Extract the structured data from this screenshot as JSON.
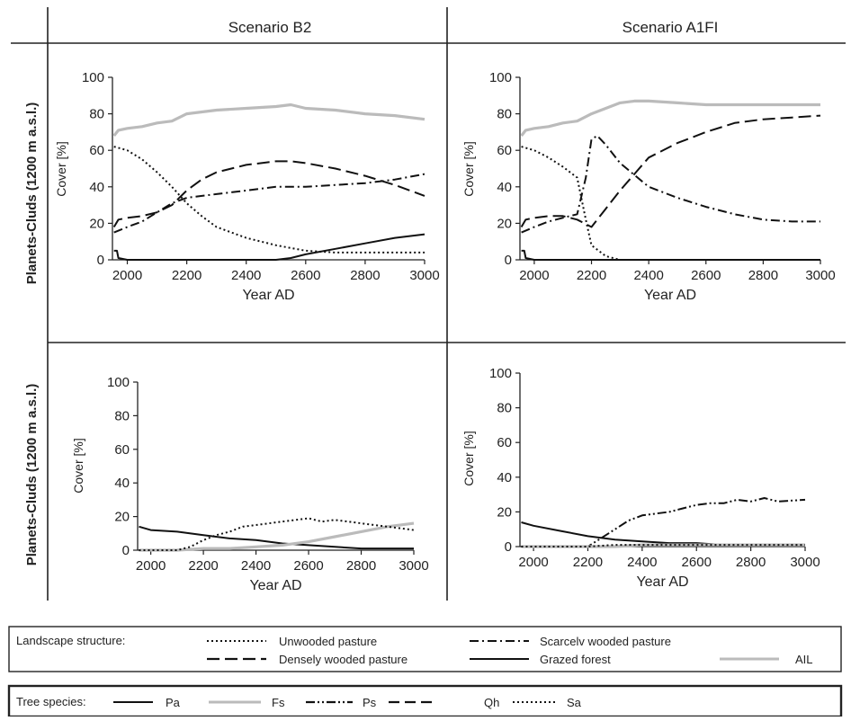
{
  "header": {
    "col_left": "Scenario B2",
    "col_right": "Scenario A1FI"
  },
  "rows": [
    {
      "label": "Planets-Cluds (1200 m a.s.l.)"
    },
    {
      "label": "Planets-Cluds (1200 m a.s.l.)"
    }
  ],
  "colors": {
    "black": "#111111",
    "grey": "#bbbbbb",
    "frame": "#222222"
  },
  "legends": {
    "landscape": {
      "title": "Landscape structure:",
      "items": [
        {
          "label": "Unwooded pasture",
          "style": "dotted",
          "color": "#111111"
        },
        {
          "label": "Scarcelv wooded pasture",
          "style": "dash-dot",
          "color": "#111111"
        },
        {
          "label": "Densely wooded pasture",
          "style": "long-dash",
          "color": "#111111"
        },
        {
          "label": "Grazed forest",
          "style": "solid",
          "color": "#111111"
        },
        {
          "label": "AIL",
          "style": "solid",
          "color": "#bbbbbb"
        }
      ]
    },
    "species": {
      "title": "Tree species:",
      "items": [
        {
          "label": "Pa",
          "style": "solid",
          "color": "#111111"
        },
        {
          "label": "Fs",
          "style": "solid",
          "color": "#bbbbbb"
        },
        {
          "label": "Ps",
          "style": "dash-dot-dot",
          "color": "#111111"
        },
        {
          "label": "Qh",
          "style": "long-dash",
          "color": "#111111"
        },
        {
          "label": "Sa",
          "style": "dotted",
          "color": "#111111"
        }
      ]
    }
  },
  "chart_data": [
    {
      "type": "line",
      "panel": "top-left",
      "xlabel": "Year AD",
      "ylabel": "Cover [%]",
      "xlim": [
        1950,
        3000
      ],
      "ylim": [
        0,
        100
      ],
      "xticks": [
        2000,
        2200,
        2400,
        2600,
        2800,
        3000
      ],
      "yticks": [
        0,
        20,
        40,
        60,
        80,
        100
      ],
      "series": [
        {
          "legend": "AIL",
          "style": "solid",
          "color": "#bbbbbb",
          "x": [
            1955,
            1970,
            2000,
            2050,
            2100,
            2150,
            2200,
            2300,
            2400,
            2500,
            2550,
            2600,
            2700,
            2800,
            2900,
            3000
          ],
          "y": [
            68,
            71,
            72,
            73,
            75,
            76,
            80,
            82,
            83,
            84,
            85,
            83,
            82,
            80,
            79,
            77
          ]
        },
        {
          "legend": "Unwooded pasture",
          "style": "dotted",
          "color": "#111111",
          "x": [
            1955,
            2000,
            2050,
            2100,
            2150,
            2200,
            2250,
            2300,
            2400,
            2500,
            2600,
            2700,
            2800,
            2900,
            3000
          ],
          "y": [
            62,
            60,
            55,
            48,
            40,
            31,
            24,
            18,
            12,
            8,
            5,
            4,
            4,
            4,
            4
          ]
        },
        {
          "legend": "Densely wooded pasture",
          "style": "long-dash",
          "color": "#111111",
          "x": [
            1955,
            1970,
            2000,
            2050,
            2100,
            2150,
            2200,
            2250,
            2300,
            2400,
            2500,
            2550,
            2600,
            2700,
            2800,
            2900,
            3000
          ],
          "y": [
            18,
            22,
            23,
            24,
            26,
            30,
            38,
            44,
            48,
            52,
            54,
            54,
            53,
            50,
            46,
            41,
            35
          ]
        },
        {
          "legend": "Scarcelv wooded pasture",
          "style": "dash-dot",
          "color": "#111111",
          "x": [
            1955,
            2000,
            2050,
            2100,
            2150,
            2200,
            2300,
            2400,
            2500,
            2600,
            2700,
            2800,
            2900,
            3000
          ],
          "y": [
            15,
            18,
            21,
            26,
            31,
            34,
            36,
            38,
            40,
            40,
            41,
            42,
            44,
            47
          ]
        },
        {
          "legend": "Grazed forest",
          "style": "solid",
          "color": "#111111",
          "x": [
            1955,
            1965,
            1970,
            2000,
            2100,
            2200,
            2300,
            2400,
            2500,
            2550,
            2600,
            2700,
            2800,
            2900,
            3000
          ],
          "y": [
            5,
            5,
            1,
            0,
            0,
            0,
            0,
            0,
            0,
            1,
            3,
            6,
            9,
            12,
            14
          ]
        }
      ]
    },
    {
      "type": "line",
      "panel": "top-right",
      "xlabel": "Year AD",
      "ylabel": "Cover [%]",
      "xlim": [
        1950,
        3000
      ],
      "ylim": [
        0,
        100
      ],
      "xticks": [
        2000,
        2200,
        2400,
        2600,
        2800,
        3000
      ],
      "yticks": [
        0,
        20,
        40,
        60,
        80,
        100
      ],
      "series": [
        {
          "legend": "AIL",
          "style": "solid",
          "color": "#bbbbbb",
          "x": [
            1955,
            1970,
            2000,
            2050,
            2100,
            2150,
            2200,
            2250,
            2300,
            2350,
            2400,
            2500,
            2600,
            2800,
            3000
          ],
          "y": [
            68,
            71,
            72,
            73,
            75,
            76,
            80,
            83,
            86,
            87,
            87,
            86,
            85,
            85,
            85
          ]
        },
        {
          "legend": "Unwooded pasture",
          "style": "dotted",
          "color": "#111111",
          "x": [
            1955,
            2000,
            2050,
            2100,
            2150,
            2180,
            2200,
            2250,
            2300,
            2400,
            3000
          ],
          "y": [
            62,
            60,
            56,
            51,
            45,
            22,
            8,
            2,
            0,
            0,
            0
          ]
        },
        {
          "legend": "Densely wooded pasture",
          "style": "long-dash",
          "color": "#111111",
          "x": [
            1955,
            1970,
            2000,
            2050,
            2100,
            2150,
            2200,
            2250,
            2300,
            2350,
            2400,
            2500,
            2600,
            2700,
            2800,
            2900,
            3000
          ],
          "y": [
            18,
            22,
            23,
            24,
            24,
            22,
            18,
            28,
            38,
            47,
            56,
            64,
            70,
            75,
            77,
            78,
            79
          ]
        },
        {
          "legend": "Scarcelv wooded pasture",
          "style": "dash-dot",
          "color": "#111111",
          "x": [
            1955,
            2000,
            2050,
            2100,
            2150,
            2180,
            2200,
            2220,
            2250,
            2300,
            2400,
            2500,
            2600,
            2700,
            2800,
            2900,
            3000
          ],
          "y": [
            15,
            18,
            21,
            23,
            25,
            45,
            66,
            68,
            63,
            53,
            40,
            34,
            29,
            25,
            22,
            21,
            21
          ]
        },
        {
          "legend": "Grazed forest",
          "style": "solid",
          "color": "#111111",
          "x": [
            1955,
            1965,
            1970,
            2000,
            3000
          ],
          "y": [
            5,
            5,
            1,
            0,
            0
          ]
        }
      ]
    },
    {
      "type": "line",
      "panel": "bottom-left",
      "xlabel": "Year AD",
      "ylabel": "Cover [%]",
      "xlim": [
        1950,
        3000
      ],
      "ylim": [
        0,
        100
      ],
      "xticks": [
        2000,
        2200,
        2400,
        2600,
        2800,
        3000
      ],
      "yticks": [
        0,
        20,
        40,
        60,
        80,
        100
      ],
      "series": [
        {
          "legend": "Pa",
          "style": "solid",
          "color": "#111111",
          "x": [
            1955,
            2000,
            2100,
            2200,
            2300,
            2400,
            2500,
            2600,
            2700,
            2800,
            2900,
            3000
          ],
          "y": [
            14,
            12,
            11,
            9,
            7,
            6,
            4,
            3,
            2,
            1,
            1,
            1
          ]
        },
        {
          "legend": "Fs",
          "style": "solid",
          "color": "#bbbbbb",
          "x": [
            1955,
            2000,
            2100,
            2200,
            2300,
            2400,
            2500,
            2600,
            2700,
            2800,
            2900,
            3000
          ],
          "y": [
            0,
            0,
            0,
            1,
            1,
            2,
            3,
            5,
            8,
            11,
            14,
            16
          ]
        },
        {
          "legend": "Sa",
          "style": "dotted",
          "color": "#111111",
          "x": [
            1955,
            2050,
            2100,
            2150,
            2200,
            2250,
            2300,
            2350,
            2400,
            2450,
            2500,
            2550,
            2600,
            2650,
            2700,
            2750,
            2800,
            2850,
            2900,
            2950,
            3000
          ],
          "y": [
            0,
            0,
            0,
            2,
            6,
            9,
            11,
            14,
            15,
            16,
            17,
            18,
            19,
            17,
            18,
            17,
            16,
            15,
            14,
            13,
            12
          ]
        }
      ]
    },
    {
      "type": "line",
      "panel": "bottom-right",
      "xlabel": "Year AD",
      "ylabel": "Cover [%]",
      "xlim": [
        1950,
        3000
      ],
      "ylim": [
        0,
        100
      ],
      "xticks": [
        2000,
        2200,
        2400,
        2600,
        2800,
        3000
      ],
      "yticks": [
        0,
        20,
        40,
        60,
        80,
        100
      ],
      "series": [
        {
          "legend": "Pa",
          "style": "solid",
          "color": "#111111",
          "x": [
            1955,
            2000,
            2100,
            2200,
            2300,
            2400,
            2500,
            2600,
            2700,
            2800,
            2900,
            3000
          ],
          "y": [
            14,
            12,
            9,
            6,
            4,
            3,
            2,
            2,
            1,
            1,
            1,
            1
          ]
        },
        {
          "legend": "Ps",
          "style": "dash-dot-dot",
          "color": "#111111",
          "x": [
            1955,
            2200,
            2250,
            2300,
            2350,
            2400,
            2450,
            2500,
            2550,
            2600,
            2650,
            2700,
            2750,
            2800,
            2850,
            2900,
            3000
          ],
          "y": [
            0,
            0,
            5,
            10,
            15,
            18,
            19,
            20,
            22,
            24,
            25,
            25,
            27,
            26,
            28,
            26,
            27
          ]
        },
        {
          "legend": "Fs",
          "style": "solid",
          "color": "#bbbbbb",
          "x": [
            1955,
            2300,
            2400,
            2600,
            2800,
            3000
          ],
          "y": [
            0,
            0,
            1,
            1,
            1,
            1
          ]
        },
        {
          "legend": "Sa",
          "style": "dotted",
          "color": "#111111",
          "x": [
            1955,
            2100,
            2200,
            2300,
            2400,
            2600,
            3000
          ],
          "y": [
            0,
            0,
            0,
            1,
            1,
            1,
            1
          ]
        }
      ]
    }
  ]
}
